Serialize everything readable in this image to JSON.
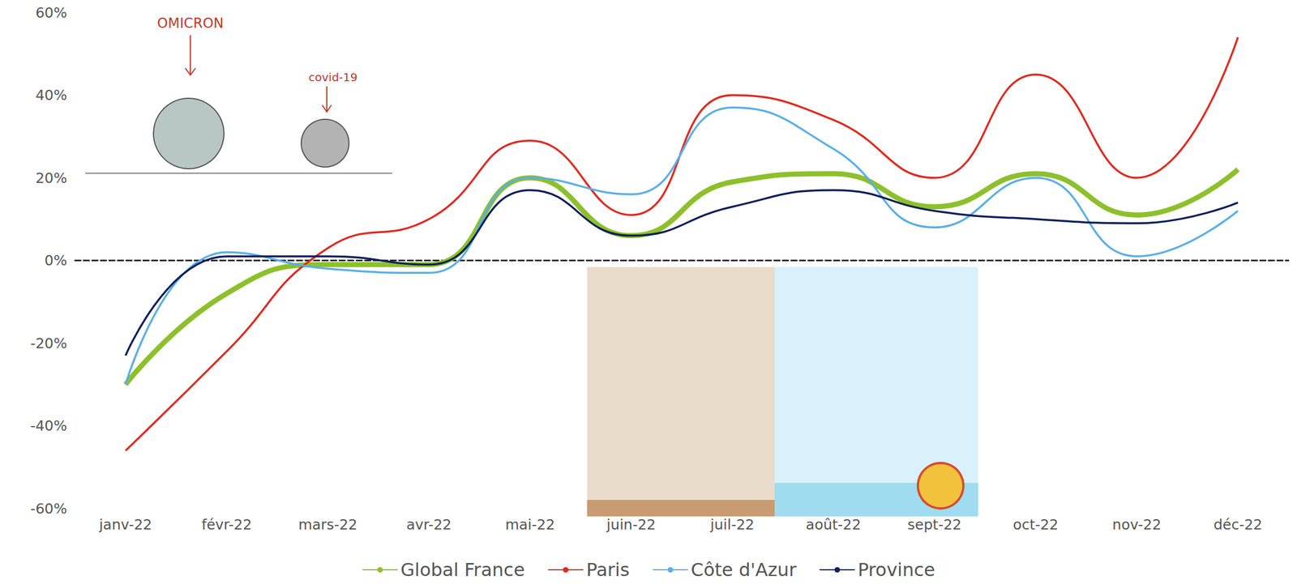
{
  "chart_data": {
    "type": "line",
    "categories": [
      "janv-22",
      "févr-22",
      "mars-22",
      "avr-22",
      "mai-22",
      "juin-22",
      "juil-22",
      "août-22",
      "sept-22",
      "oct-22",
      "nov-22",
      "déc-22"
    ],
    "series": [
      {
        "name": "Global France",
        "color": "#8dc02c",
        "values": [
          -30,
          -8,
          -1,
          -1,
          20,
          6,
          19,
          21,
          13,
          21,
          11,
          22
        ]
      },
      {
        "name": "Paris",
        "color": "#e0291f",
        "values": [
          -46,
          -22,
          3,
          10,
          29,
          11,
          40,
          34,
          20,
          45,
          20,
          54
        ]
      },
      {
        "name": "Côte d'Azur",
        "color": "#5aaee8",
        "values": [
          -30,
          2,
          -2,
          -3,
          20,
          16,
          37,
          27,
          8,
          20,
          1,
          12
        ]
      },
      {
        "name": "Province",
        "color": "#0d1f5c",
        "values": [
          -23,
          1,
          1,
          -1,
          17,
          6,
          13,
          17,
          12,
          10,
          9,
          14
        ]
      }
    ],
    "ylim": [
      -60,
      60
    ],
    "yticks": [
      {
        "value": -60,
        "label": "-60%"
      },
      {
        "value": -40,
        "label": "-40%"
      },
      {
        "value": -20,
        "label": "-20%"
      },
      {
        "value": 0,
        "label": "0%"
      },
      {
        "value": 20,
        "label": "20%"
      },
      {
        "value": 40,
        "label": "40%"
      },
      {
        "value": 60,
        "label": "60%"
      }
    ],
    "grid": false,
    "legend": "bottom",
    "annotations": [
      "OMICRON",
      "covid-19"
    ]
  }
}
